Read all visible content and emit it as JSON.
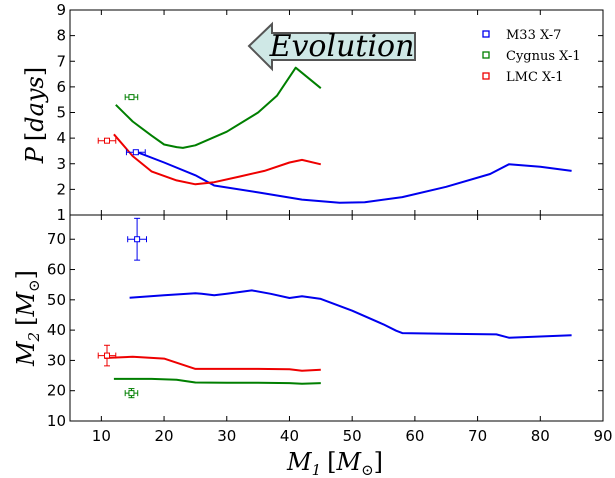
{
  "chart_data": {
    "type": "line",
    "x_axis": {
      "label_var": "M",
      "label_sub": "1",
      "label_unit_open": " [",
      "label_unit_var": "M",
      "label_unit_sym": "⊙",
      "label_unit_close": "]",
      "xlim": [
        5,
        90
      ],
      "ticks": [
        10,
        20,
        30,
        40,
        50,
        60,
        70,
        80,
        90
      ]
    },
    "annotation": {
      "text": "Evolution",
      "color": "#cfe8e6"
    },
    "legend": {
      "placement": "top-right",
      "entries": [
        {
          "name": "M33 X-7",
          "color": "#0000ee"
        },
        {
          "name": "Cygnus X-1",
          "color": "#007f00"
        },
        {
          "name": "LMC X-1",
          "color": "#ee0000"
        }
      ]
    },
    "panels": [
      {
        "id": "top",
        "ylabel": "P [days]",
        "ylabel_var": "P",
        "ylabel_unit": "days",
        "ylim": [
          1,
          9
        ],
        "yticks": [
          1,
          2,
          3,
          4,
          5,
          6,
          7,
          8,
          9
        ],
        "series": [
          {
            "color": "#0000ee",
            "x": [
              15.2,
              20,
              25,
              28,
              35,
              42,
              48,
              52,
              58,
              65,
              72,
              75,
              80,
              85
            ],
            "y": [
              3.5,
              3.05,
              2.55,
              2.15,
              1.88,
              1.6,
              1.48,
              1.5,
              1.7,
              2.1,
              2.6,
              2.98,
              2.88,
              2.72
            ]
          },
          {
            "color": "#007f00",
            "x": [
              12.3,
              15,
              18,
              20,
              22,
              23,
              25,
              30,
              35,
              38,
              41,
              45
            ],
            "y": [
              5.3,
              4.65,
              4.1,
              3.75,
              3.65,
              3.62,
              3.72,
              4.25,
              5.0,
              5.65,
              6.75,
              5.95
            ]
          },
          {
            "color": "#ee0000",
            "x": [
              12,
              15,
              18,
              22,
              25,
              28,
              32,
              36,
              40,
              42,
              45
            ],
            "y": [
              4.15,
              3.3,
              2.7,
              2.35,
              2.2,
              2.28,
              2.5,
              2.72,
              3.05,
              3.15,
              2.98
            ]
          }
        ],
        "points": [
          {
            "color": "#0000ee",
            "x": 15.5,
            "y": 3.45,
            "xerr": 1.5,
            "yerr": 0.08
          },
          {
            "color": "#007f00",
            "x": 14.8,
            "y": 5.6,
            "xerr": 1.0,
            "yerr": 0.08
          },
          {
            "color": "#ee0000",
            "x": 10.9,
            "y": 3.9,
            "xerr": 1.4,
            "yerr": 0.08
          }
        ]
      },
      {
        "id": "bottom",
        "ylabel_var": "M",
        "ylabel_sub": "2",
        "ylabel_unit_var": "M",
        "ylabel_unit_sym": "⊙",
        "ylim": [
          10,
          78
        ],
        "yticks": [
          10,
          20,
          30,
          40,
          50,
          60,
          70
        ],
        "series": [
          {
            "color": "#0000ee",
            "x": [
              14.5,
              20,
              25,
              26,
              28,
              30,
              34,
              37,
              40,
              42,
              45,
              50,
              55,
              57,
              58,
              65,
              73,
              75,
              85
            ],
            "y": [
              50.7,
              51.5,
              52.2,
              52.0,
              51.5,
              52.0,
              53.1,
              52.0,
              50.6,
              51.2,
              50.3,
              46.4,
              41.9,
              39.8,
              39.0,
              38.8,
              38.6,
              37.5,
              38.3
            ]
          },
          {
            "color": "#ee0000",
            "x": [
              10.5,
              15,
              20,
              25,
              30,
              35,
              40,
              42,
              45
            ],
            "y": [
              30.8,
              31.2,
              30.6,
              27.2,
              27.2,
              27.2,
              27.1,
              26.6,
              26.9
            ]
          },
          {
            "color": "#007f00",
            "x": [
              12,
              15,
              18,
              22,
              25,
              30,
              35,
              40,
              42,
              45
            ],
            "y": [
              23.9,
              23.9,
              23.9,
              23.6,
              22.7,
              22.6,
              22.6,
              22.5,
              22.3,
              22.5
            ]
          }
        ],
        "points": [
          {
            "color": "#0000ee",
            "x": 15.7,
            "y": 70.0,
            "xerr": 1.5,
            "yerr": 6.9
          },
          {
            "color": "#ee0000",
            "x": 10.9,
            "y": 31.6,
            "xerr": 1.4,
            "yerr": 3.4
          },
          {
            "color": "#007f00",
            "x": 14.8,
            "y": 19.2,
            "xerr": 1.0,
            "yerr": 1.5
          }
        ]
      }
    ]
  }
}
